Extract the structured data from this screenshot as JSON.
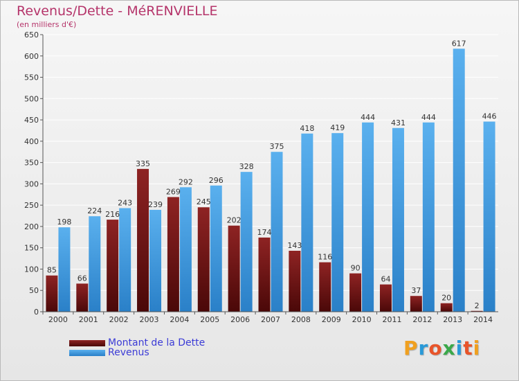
{
  "chart_data": {
    "type": "bar",
    "title": "Revenus/Dette - MéRENVIELLE",
    "subtitle": "(en milliers d'€)",
    "categories": [
      "2000",
      "2001",
      "2002",
      "2003",
      "2004",
      "2005",
      "2006",
      "2007",
      "2008",
      "2009",
      "2010",
      "2011",
      "2012",
      "2013",
      "2014"
    ],
    "series": [
      {
        "name": "Montant de la Dette",
        "color": "#7a1a1a",
        "values": [
          85,
          66,
          216,
          335,
          269,
          245,
          202,
          174,
          143,
          116,
          90,
          64,
          37,
          20,
          2
        ]
      },
      {
        "name": "Revenus",
        "color": "#3a98e0",
        "values": [
          198,
          224,
          243,
          239,
          292,
          296,
          328,
          375,
          418,
          419,
          444,
          431,
          444,
          617,
          446
        ]
      }
    ],
    "ylim": [
      0,
      650
    ],
    "yticks": [
      0,
      50,
      100,
      150,
      200,
      250,
      300,
      350,
      400,
      450,
      500,
      550,
      600,
      650
    ],
    "grid": true,
    "legend_position": "bottom-left"
  },
  "logo": {
    "letters": [
      "P",
      "r",
      "o",
      "x",
      "i",
      "t",
      "i"
    ],
    "colors": [
      "#f0a020",
      "#2a9ad8",
      "#e8542a",
      "#3aa84a",
      "#2a9ad8",
      "#e8542a",
      "#f0a020"
    ]
  }
}
